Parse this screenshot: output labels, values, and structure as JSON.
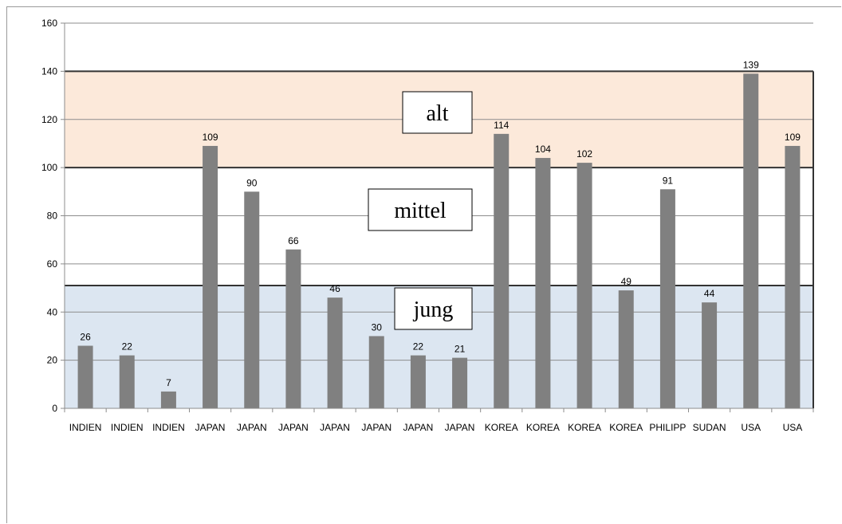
{
  "chart_data": {
    "type": "bar",
    "categories": [
      "INDIEN",
      "INDIEN",
      "INDIEN",
      "JAPAN",
      "JAPAN",
      "JAPAN",
      "JAPAN",
      "JAPAN",
      "JAPAN",
      "JAPAN",
      "KOREA",
      "KOREA",
      "KOREA",
      "KOREA",
      "PHILIPP",
      "SUDAN",
      "USA",
      "USA"
    ],
    "values": [
      26,
      22,
      7,
      109,
      90,
      66,
      46,
      30,
      22,
      21,
      114,
      104,
      102,
      49,
      91,
      44,
      139,
      109
    ],
    "ylim": [
      0,
      160
    ],
    "yticks": [
      0,
      20,
      40,
      60,
      80,
      100,
      120,
      140,
      160
    ],
    "grid": true,
    "bar_color": "#808080",
    "bands": [
      {
        "label": "jung",
        "from": 0,
        "to": 51,
        "color": "#dce6f1"
      },
      {
        "label": "mittel",
        "from": 51,
        "to": 100,
        "color": "#ffffff"
      },
      {
        "label": "alt",
        "from": 100,
        "to": 140,
        "color": "#fce9da"
      }
    ]
  }
}
